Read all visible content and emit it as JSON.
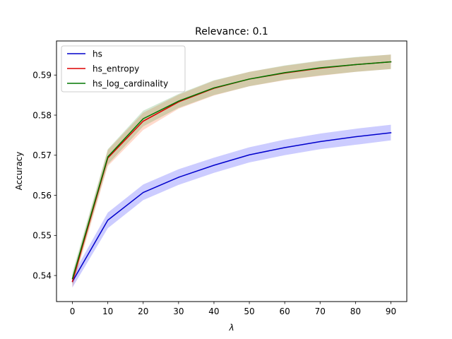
{
  "chart_data": {
    "type": "line",
    "title": "Relevance: 0.1",
    "xlabel": "λ",
    "ylabel": "Accuracy",
    "xlim": [
      -4.5,
      94.5
    ],
    "ylim": [
      0.5335,
      0.5985
    ],
    "xticks": [
      0,
      10,
      20,
      30,
      40,
      50,
      60,
      70,
      80,
      90
    ],
    "xtick_labels": [
      "0",
      "10",
      "20",
      "30",
      "40",
      "50",
      "60",
      "70",
      "80",
      "90"
    ],
    "yticks": [
      0.54,
      0.55,
      0.56,
      0.57,
      0.58,
      0.59
    ],
    "ytick_labels": [
      "0.54",
      "0.55",
      "0.56",
      "0.57",
      "0.58",
      "0.59"
    ],
    "grid": false,
    "legend_position": "top-left",
    "x": [
      0,
      10,
      20,
      30,
      40,
      50,
      60,
      70,
      80,
      90
    ],
    "series": [
      {
        "name": "hs",
        "color": "#0000cc",
        "values": [
          0.5385,
          0.5538,
          0.5607,
          0.5645,
          0.5675,
          0.5701,
          0.5719,
          0.5734,
          0.5746,
          0.5756
        ],
        "lower": [
          0.537,
          0.5518,
          0.5588,
          0.5626,
          0.5656,
          0.5682,
          0.57,
          0.5715,
          0.5726,
          0.5737
        ],
        "upper": [
          0.54,
          0.5557,
          0.5627,
          0.5665,
          0.5694,
          0.572,
          0.5739,
          0.5754,
          0.5766,
          0.5776
        ],
        "band_color": "#0000ff"
      },
      {
        "name": "hs_entropy",
        "color": "#dd0000",
        "values": [
          0.5385,
          0.5693,
          0.5785,
          0.5833,
          0.5867,
          0.589,
          0.5905,
          0.5917,
          0.5926,
          0.5933
        ],
        "lower": [
          0.537,
          0.5673,
          0.5763,
          0.5816,
          0.5849,
          0.5872,
          0.5887,
          0.5898,
          0.5908,
          0.5915
        ],
        "upper": [
          0.54,
          0.5713,
          0.5806,
          0.5851,
          0.5886,
          0.5908,
          0.5923,
          0.5935,
          0.5944,
          0.5951
        ],
        "band_color": "#ff4500"
      },
      {
        "name": "hs_log_cardinality",
        "color": "#007700",
        "values": [
          0.5392,
          0.5696,
          0.5791,
          0.5835,
          0.5868,
          0.589,
          0.5906,
          0.5918,
          0.5926,
          0.5933
        ],
        "lower": [
          0.5377,
          0.5677,
          0.5772,
          0.5818,
          0.585,
          0.5872,
          0.5888,
          0.5899,
          0.5908,
          0.5915
        ],
        "upper": [
          0.5408,
          0.5715,
          0.5811,
          0.5853,
          0.5887,
          0.5908,
          0.5924,
          0.5936,
          0.5945,
          0.5951
        ],
        "band_color": "#228b22"
      }
    ]
  }
}
